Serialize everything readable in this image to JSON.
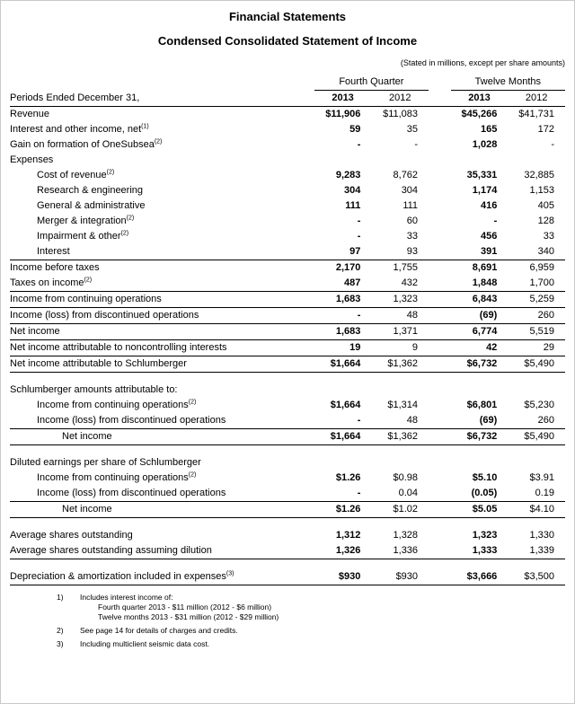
{
  "page": {
    "title": "Financial Statements",
    "subtitle": "Condensed Consolidated Statement of Income",
    "note": "(Stated in millions, except per share amounts)"
  },
  "table": {
    "group_headers": [
      "Fourth Quarter",
      "Twelve Months"
    ],
    "period_label": "Periods Ended December 31,",
    "year_headers": [
      "2013",
      "2012",
      "2013",
      "2012"
    ],
    "rows": [
      {
        "type": "data",
        "label": "Revenue",
        "values": [
          "$11,906",
          "$11,083",
          "$45,266",
          "$41,731"
        ]
      },
      {
        "type": "data",
        "label": "Interest and other income, net",
        "sup": "(1)",
        "values": [
          "59",
          "35",
          "165",
          "172"
        ]
      },
      {
        "type": "data",
        "label": "Gain on formation of OneSubsea",
        "sup": "(2)",
        "values": [
          "-",
          "-",
          "1,028",
          "-"
        ]
      },
      {
        "type": "section",
        "label": "Expenses"
      },
      {
        "type": "data",
        "indent": 1,
        "label": "Cost of revenue",
        "sup": "(2)",
        "values": [
          "9,283",
          "8,762",
          "35,331",
          "32,885"
        ]
      },
      {
        "type": "data",
        "indent": 1,
        "label": "Research & engineering",
        "values": [
          "304",
          "304",
          "1,174",
          "1,153"
        ]
      },
      {
        "type": "data",
        "indent": 1,
        "label": "General & administrative",
        "values": [
          "111",
          "111",
          "416",
          "405"
        ]
      },
      {
        "type": "data",
        "indent": 1,
        "label": "Merger & integration",
        "sup": "(2)",
        "values": [
          "-",
          "60",
          "-",
          "128"
        ]
      },
      {
        "type": "data",
        "indent": 1,
        "label": "Impairment & other",
        "sup": "(2)",
        "values": [
          "-",
          "33",
          "456",
          "33"
        ]
      },
      {
        "type": "data",
        "indent": 1,
        "label": "Interest",
        "values": [
          "97",
          "93",
          "391",
          "340"
        ],
        "border": true
      },
      {
        "type": "data",
        "label": "Income before taxes",
        "values": [
          "2,170",
          "1,755",
          "8,691",
          "6,959"
        ]
      },
      {
        "type": "data",
        "label": "Taxes on income",
        "sup": "(2)",
        "values": [
          "487",
          "432",
          "1,848",
          "1,700"
        ],
        "border": true
      },
      {
        "type": "data",
        "label": "Income from continuing operations",
        "values": [
          "1,683",
          "1,323",
          "6,843",
          "5,259"
        ],
        "border": true
      },
      {
        "type": "data",
        "label": "Income (loss) from discontinued operations",
        "values": [
          "-",
          "48",
          "(69)",
          "260"
        ],
        "border": true
      },
      {
        "type": "data",
        "label": "Net income",
        "values": [
          "1,683",
          "1,371",
          "6,774",
          "5,519"
        ],
        "border": true
      },
      {
        "type": "data",
        "label": "Net income attributable to noncontrolling interests",
        "values": [
          "19",
          "9",
          "42",
          "29"
        ],
        "border": true
      },
      {
        "type": "data",
        "label": "Net income attributable to Schlumberger",
        "values": [
          "$1,664",
          "$1,362",
          "$6,732",
          "$5,490"
        ],
        "border": true
      },
      {
        "type": "spacer"
      },
      {
        "type": "section",
        "label": "Schlumberger amounts attributable to:"
      },
      {
        "type": "data",
        "indent": 1,
        "label": "Income from continuing operations",
        "sup": "(2)",
        "values": [
          "$1,664",
          "$1,314",
          "$6,801",
          "$5,230"
        ]
      },
      {
        "type": "data",
        "indent": 1,
        "label": "Income (loss) from discontinued operations",
        "values": [
          "-",
          "48",
          "(69)",
          "260"
        ],
        "border": true
      },
      {
        "type": "data",
        "indent": 2,
        "label": "Net income",
        "values": [
          "$1,664",
          "$1,362",
          "$6,732",
          "$5,490"
        ],
        "border": true
      },
      {
        "type": "spacer"
      },
      {
        "type": "section",
        "label": "Diluted earnings per share of Schlumberger"
      },
      {
        "type": "data",
        "indent": 1,
        "label": "Income from continuing operations",
        "sup": "(2)",
        "values": [
          "$1.26",
          "$0.98",
          "$5.10",
          "$3.91"
        ]
      },
      {
        "type": "data",
        "indent": 1,
        "label": "Income (loss) from discontinued operations",
        "values": [
          "-",
          "0.04",
          "(0.05)",
          "0.19"
        ],
        "border": true
      },
      {
        "type": "data",
        "indent": 2,
        "label": "Net income",
        "values": [
          "$1.26",
          "$1.02",
          "$5.05",
          "$4.10"
        ],
        "border": true
      },
      {
        "type": "spacer"
      },
      {
        "type": "data",
        "label": "Average shares outstanding",
        "values": [
          "1,312",
          "1,328",
          "1,323",
          "1,330"
        ]
      },
      {
        "type": "data",
        "label": "Average shares outstanding assuming dilution",
        "values": [
          "1,326",
          "1,336",
          "1,333",
          "1,339"
        ],
        "border": true
      },
      {
        "type": "spacer"
      },
      {
        "type": "data",
        "label": "Depreciation & amortization included in expenses",
        "sup": "(3)",
        "values": [
          "$930",
          "$930",
          "$3,666",
          "$3,500"
        ],
        "border": true
      }
    ]
  },
  "footnotes": [
    {
      "num": "1)",
      "lines": [
        "Includes interest income of:",
        "Fourth quarter 2013 - $11 million (2012 - $6 million)",
        "Twelve months 2013 - $31 million (2012 - $29 million)"
      ]
    },
    {
      "num": "2)",
      "lines": [
        "See page 14 for details of charges and credits."
      ]
    },
    {
      "num": "3)",
      "lines": [
        "Including multiclient seismic data cost."
      ]
    }
  ]
}
